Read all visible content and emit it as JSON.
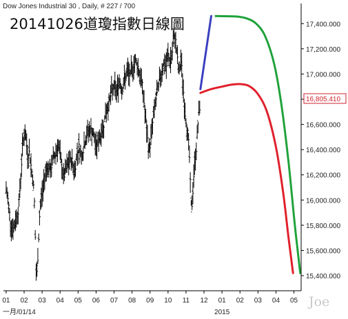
{
  "header": {
    "series_title": "Dow Jones Industrial 30 , Daily, # 227 / 700",
    "chart_title": "20141026道瓊指數日線圖"
  },
  "watermark": "Joe",
  "colors": {
    "price": "#000000",
    "projection_up": "#3a3fbf",
    "projection_green": "#1fa23a",
    "projection_red": "#e0202c",
    "last_price_box": "#d0202c",
    "axis": "#000000"
  },
  "chart_data": {
    "type": "line",
    "style": "ohlc-daily-bars-with-hand-drawn-projections",
    "title": "20141026道瓊指數日線圖",
    "subtitle": "Dow Jones Industrial 30 , Daily, # 227 / 700",
    "ylim": [
      15280,
      17560
    ],
    "y_ticks": [
      15400,
      15600,
      15800,
      16000,
      16200,
      16400,
      16600,
      16800,
      17000,
      17200,
      17400
    ],
    "y_tick_labels": [
      "15,400.000",
      "15,600.000",
      "15,800.000",
      "16,000.000",
      "16,200.000",
      "16,400.000",
      "16,600.000",
      "16,800.000",
      "17,000.000",
      "17,200.000",
      "17,400.000"
    ],
    "last_price": 16805.41,
    "last_price_label": "16,805.410",
    "x_month_labels": [
      "01",
      "02",
      "03",
      "04",
      "05",
      "06",
      "07",
      "08",
      "09",
      "10",
      "11",
      "12",
      "01",
      "02",
      "03",
      "04",
      "05"
    ],
    "x_bottom_left_label": "一月/01/14",
    "x_year_label": "2015",
    "x_year_label_index": 12,
    "x_month_index_range": [
      -0.15,
      16.4
    ],
    "price_closes": [
      [
        0.0,
        16080
      ],
      [
        0.1,
        16000
      ],
      [
        0.25,
        15820
      ],
      [
        0.4,
        15760
      ],
      [
        0.55,
        15850
      ],
      [
        0.7,
        15940
      ],
      [
        0.85,
        16280
      ],
      [
        0.92,
        16440
      ],
      [
        1.0,
        16530
      ],
      [
        1.1,
        16490
      ],
      [
        1.2,
        16360
      ],
      [
        1.3,
        16380
      ],
      [
        1.4,
        16250
      ],
      [
        1.5,
        16160
      ],
      [
        1.58,
        15960
      ],
      [
        1.62,
        15700
      ],
      [
        1.66,
        15420
      ],
      [
        1.7,
        15380
      ],
      [
        1.78,
        15600
      ],
      [
        1.85,
        15860
      ],
      [
        1.95,
        16020
      ],
      [
        2.05,
        16080
      ],
      [
        2.15,
        16200
      ],
      [
        2.3,
        16280
      ],
      [
        2.45,
        16220
      ],
      [
        2.6,
        16320
      ],
      [
        2.75,
        16380
      ],
      [
        2.9,
        16440
      ],
      [
        3.05,
        16300
      ],
      [
        3.2,
        16180
      ],
      [
        3.35,
        16250
      ],
      [
        3.5,
        16300
      ],
      [
        3.65,
        16320
      ],
      [
        3.8,
        16220
      ],
      [
        3.95,
        16380
      ],
      [
        4.05,
        16420
      ],
      [
        4.2,
        16350
      ],
      [
        4.4,
        16480
      ],
      [
        4.6,
        16560
      ],
      [
        4.8,
        16540
      ],
      [
        5.0,
        16420
      ],
      [
        5.2,
        16500
      ],
      [
        5.4,
        16580
      ],
      [
        5.55,
        16700
      ],
      [
        5.7,
        16760
      ],
      [
        5.85,
        16850
      ],
      [
        6.0,
        16900
      ],
      [
        6.15,
        16860
      ],
      [
        6.3,
        16950
      ],
      [
        6.45,
        16880
      ],
      [
        6.6,
        16960
      ],
      [
        6.75,
        17020
      ],
      [
        6.9,
        16980
      ],
      [
        7.05,
        17060
      ],
      [
        7.2,
        17110
      ],
      [
        7.35,
        17050
      ],
      [
        7.5,
        16950
      ],
      [
        7.6,
        16880
      ],
      [
        7.7,
        16720
      ],
      [
        7.8,
        16560
      ],
      [
        7.88,
        16450
      ],
      [
        7.96,
        16390
      ],
      [
        8.05,
        16500
      ],
      [
        8.15,
        16620
      ],
      [
        8.3,
        16780
      ],
      [
        8.45,
        16880
      ],
      [
        8.6,
        17000
      ],
      [
        8.75,
        17080
      ],
      [
        8.9,
        17060
      ],
      [
        9.0,
        17150
      ],
      [
        9.1,
        17100
      ],
      [
        9.2,
        17130
      ],
      [
        9.3,
        17250
      ],
      [
        9.38,
        17310
      ],
      [
        9.46,
        17220
      ],
      [
        9.54,
        17080
      ],
      [
        9.62,
        17000
      ],
      [
        9.7,
        17120
      ],
      [
        9.78,
        17020
      ],
      [
        9.86,
        16850
      ],
      [
        9.94,
        16700
      ],
      [
        10.02,
        16620
      ],
      [
        10.1,
        16520
      ],
      [
        10.18,
        16380
      ],
      [
        10.24,
        16120
      ],
      [
        10.3,
        15900
      ],
      [
        10.36,
        16020
      ],
      [
        10.42,
        16180
      ],
      [
        10.5,
        16320
      ],
      [
        10.58,
        16420
      ],
      [
        10.66,
        16600
      ],
      [
        10.74,
        16700
      ],
      [
        10.8,
        16805.41
      ]
    ],
    "series": [
      {
        "color": "#3a3fbf",
        "x": [
          10.8,
          11.4
        ],
        "values": [
          16880,
          17460
        ]
      },
      {
        "color": "#1fa23a",
        "x": [
          11.65,
          12.4,
          12.9,
          13.4,
          13.9,
          14.4,
          14.9,
          15.3,
          15.7,
          16.05,
          16.35
        ],
        "values": [
          17460,
          17458,
          17455,
          17440,
          17400,
          17300,
          17080,
          16760,
          16300,
          15800,
          15420
        ]
      },
      {
        "color": "#e0202c",
        "x": [
          10.8,
          11.4,
          12.0,
          12.5,
          13.0,
          13.5,
          14.0,
          14.5,
          15.0,
          15.4,
          15.7,
          15.95
        ],
        "values": [
          16850,
          16880,
          16900,
          16915,
          16920,
          16905,
          16840,
          16700,
          16420,
          16060,
          15700,
          15420
        ]
      }
    ]
  }
}
